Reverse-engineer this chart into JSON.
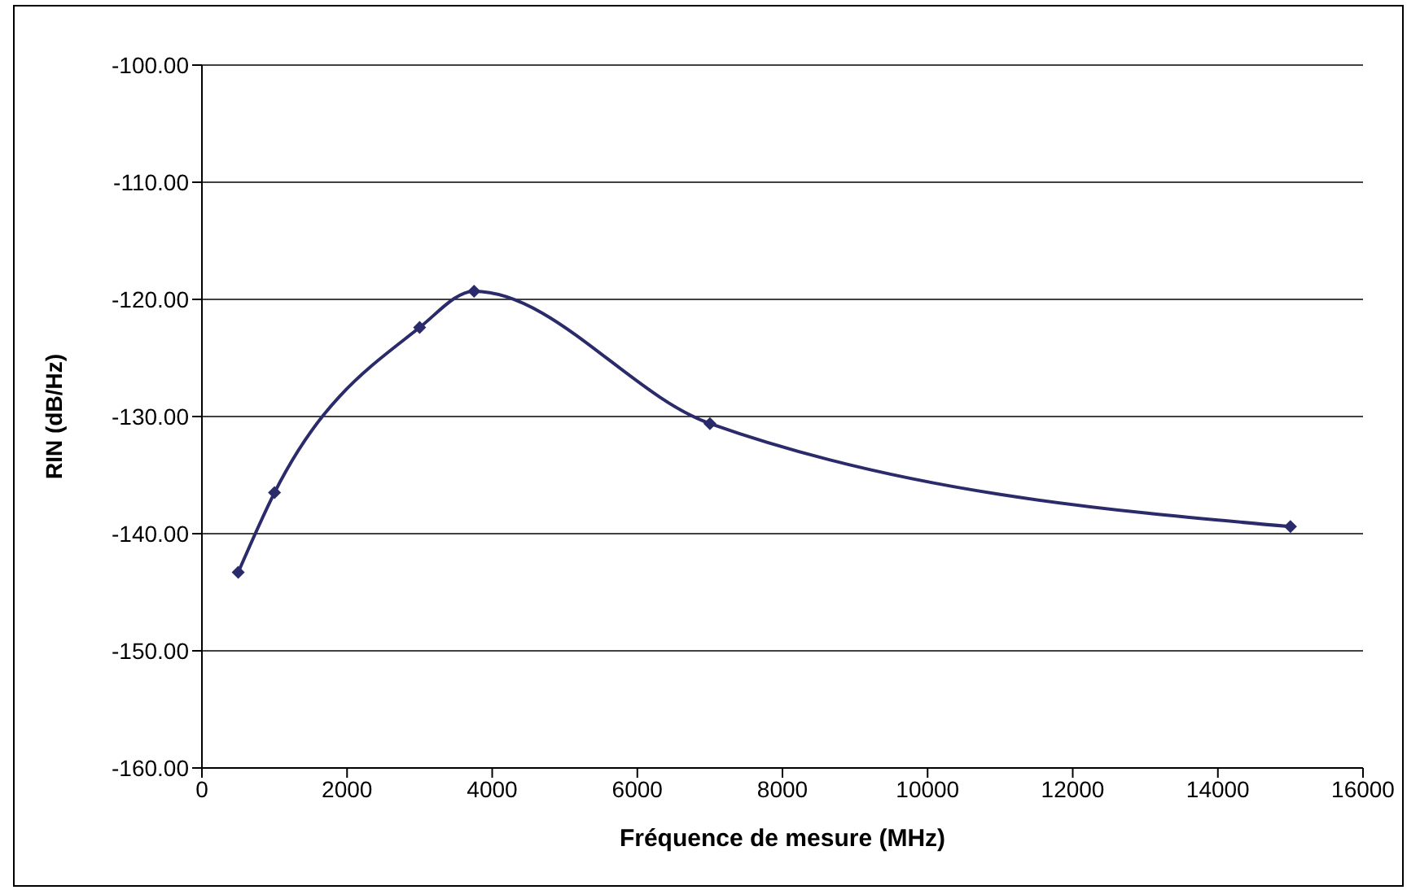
{
  "chart_data": {
    "type": "line",
    "xlabel": "Fréquence de mesure (MHz)",
    "ylabel": "RIN (dB/Hz)",
    "x": [
      500,
      1000,
      3000,
      3750,
      7000,
      15000
    ],
    "series": [
      {
        "color": "#2b2b6b",
        "values": [
          -143.3,
          -136.5,
          -122.4,
          -119.3,
          -130.6,
          -139.4
        ]
      }
    ],
    "xlim": [
      0,
      16000
    ],
    "xticks": [
      0,
      2000,
      4000,
      6000,
      8000,
      10000,
      12000,
      14000,
      16000
    ],
    "ylim": [
      -160,
      -100
    ],
    "yticks": [
      {
        "value": -160,
        "label": "-160.00"
      },
      {
        "value": -150,
        "label": "-150.00"
      },
      {
        "value": -140,
        "label": "-140.00"
      },
      {
        "value": -130,
        "label": "-130.00"
      },
      {
        "value": -120,
        "label": "-120.00"
      },
      {
        "value": -110,
        "label": "-110.00"
      },
      {
        "value": -100,
        "label": "-100.00"
      }
    ],
    "grid": "y",
    "marker": "diamond",
    "line_style": "solid",
    "legend": false
  }
}
